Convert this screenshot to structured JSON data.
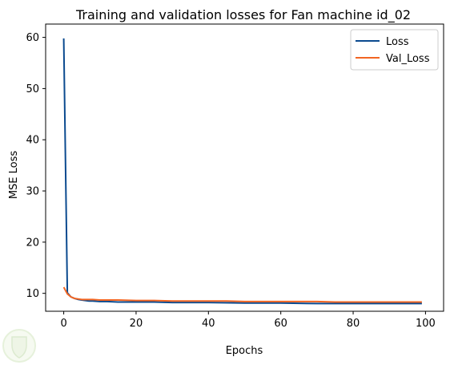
{
  "chart_data": {
    "type": "line",
    "title": "Training and validation losses for Fan machine id_02",
    "xlabel": "Epochs",
    "ylabel": "MSE Loss",
    "xlim": [
      -5,
      105
    ],
    "ylim": [
      6.5,
      62.6
    ],
    "xticks": [
      0,
      20,
      40,
      60,
      80,
      100
    ],
    "yticks": [
      10,
      20,
      30,
      40,
      50,
      60
    ],
    "grid": false,
    "legend_position": "top-right",
    "series": [
      {
        "name": "Loss",
        "color": "#0b4a8f",
        "x": [
          0,
          1,
          2,
          3,
          4,
          5,
          6,
          7,
          8,
          10,
          12,
          15,
          20,
          25,
          30,
          40,
          50,
          60,
          70,
          80,
          90,
          99
        ],
        "y": [
          59.8,
          10.1,
          9.3,
          9.0,
          8.8,
          8.7,
          8.6,
          8.5,
          8.5,
          8.4,
          8.4,
          8.3,
          8.3,
          8.3,
          8.2,
          8.2,
          8.1,
          8.1,
          8.0,
          8.0,
          8.0,
          8.0
        ]
      },
      {
        "name": "Val_Loss",
        "color": "#f26522",
        "x": [
          0,
          1,
          2,
          3,
          4,
          5,
          6,
          7,
          8,
          10,
          12,
          15,
          20,
          25,
          30,
          35,
          40,
          45,
          50,
          55,
          60,
          65,
          70,
          75,
          80,
          85,
          90,
          95,
          99
        ],
        "y": [
          11.2,
          9.9,
          9.3,
          9.0,
          8.9,
          8.8,
          8.8,
          8.8,
          8.8,
          8.7,
          8.7,
          8.7,
          8.6,
          8.6,
          8.5,
          8.5,
          8.5,
          8.5,
          8.4,
          8.4,
          8.4,
          8.4,
          8.4,
          8.3,
          8.3,
          8.3,
          8.3,
          8.3,
          8.3
        ]
      }
    ]
  }
}
